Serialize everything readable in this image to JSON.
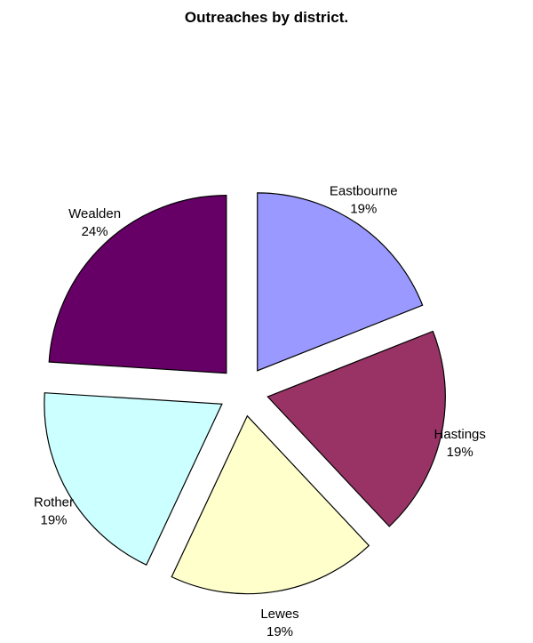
{
  "chart_data": {
    "type": "pie",
    "title": "Outreaches by district.",
    "categories": [
      "Eastbourne",
      "Hastings",
      "Lewes",
      "Rother",
      "Wealden"
    ],
    "values": [
      19,
      19,
      19,
      19,
      24
    ],
    "value_labels": [
      "19%",
      "19%",
      "19%",
      "19%",
      "24%"
    ],
    "exploded": true,
    "colors": [
      "#9999ff",
      "#993366",
      "#ffffcc",
      "#ccffff",
      "#660066"
    ]
  }
}
